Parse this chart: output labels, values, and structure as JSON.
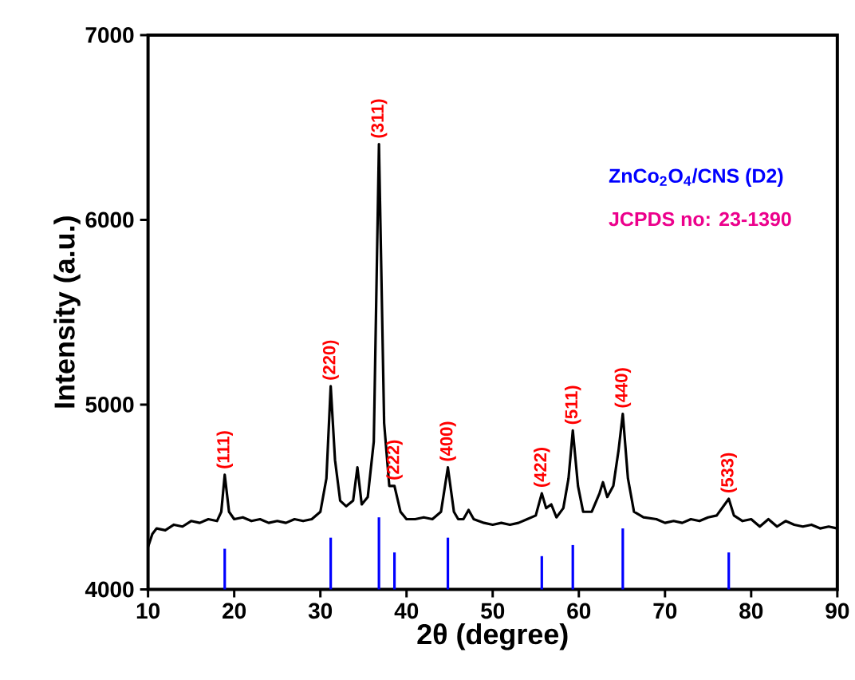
{
  "chart_data": {
    "type": "line",
    "xlabel": "2θ (degree)",
    "ylabel": "Intensity (a.u.)",
    "xlim": [
      10,
      90
    ],
    "xticks": [
      10,
      20,
      30,
      40,
      50,
      60,
      70,
      80,
      90
    ],
    "ylim": [
      4000,
      7000
    ],
    "yticks": [
      4000,
      5000,
      6000,
      7000
    ],
    "grid": false,
    "marker": "none",
    "line_style": "solid",
    "series": [
      {
        "color": "#000000",
        "x": [
          10,
          10.5,
          11,
          12,
          13,
          14,
          15,
          16,
          17,
          18,
          18.5,
          18.9,
          19.4,
          20,
          21,
          22,
          23,
          24,
          25,
          26,
          27,
          28,
          29,
          30,
          30.7,
          31.2,
          31.7,
          32.3,
          33,
          33.8,
          34.3,
          34.8,
          35.5,
          36.2,
          36.8,
          37.4,
          38,
          38.6,
          39.3,
          40,
          41,
          42,
          43,
          44,
          44.8,
          45.5,
          46,
          46.6,
          47.2,
          47.8,
          49,
          50,
          51,
          52,
          53,
          54,
          55,
          55.7,
          56.2,
          56.8,
          57.4,
          58.2,
          58.8,
          59.3,
          59.9,
          60.5,
          61.5,
          62.4,
          62.8,
          63.3,
          64,
          64.6,
          65.1,
          65.7,
          66.4,
          67.5,
          69,
          70,
          71,
          72,
          73,
          74,
          75,
          76,
          77.4,
          78,
          79,
          80,
          81,
          82,
          83,
          84,
          85,
          86,
          87,
          88,
          89,
          90
        ],
        "values": [
          4230,
          4300,
          4330,
          4320,
          4350,
          4340,
          4370,
          4360,
          4380,
          4370,
          4420,
          4620,
          4420,
          4380,
          4390,
          4370,
          4380,
          4360,
          4370,
          4360,
          4380,
          4370,
          4380,
          4420,
          4600,
          5100,
          4700,
          4480,
          4450,
          4480,
          4660,
          4460,
          4500,
          4800,
          6410,
          4900,
          4560,
          4560,
          4420,
          4380,
          4380,
          4390,
          4380,
          4420,
          4660,
          4420,
          4380,
          4380,
          4430,
          4380,
          4360,
          4350,
          4360,
          4350,
          4360,
          4380,
          4400,
          4520,
          4440,
          4460,
          4390,
          4440,
          4600,
          4860,
          4560,
          4420,
          4420,
          4520,
          4580,
          4500,
          4560,
          4750,
          4950,
          4600,
          4420,
          4390,
          4380,
          4360,
          4370,
          4360,
          4380,
          4370,
          4390,
          4400,
          4490,
          4400,
          4370,
          4380,
          4340,
          4380,
          4340,
          4370,
          4350,
          4340,
          4350,
          4330,
          4340,
          4330
        ]
      },
      {
        "type": "bar",
        "color": "#0000ff",
        "x": [
          18.9,
          31.2,
          36.8,
          38.6,
          44.8,
          55.7,
          59.3,
          65.1,
          77.4
        ],
        "values": [
          4220,
          4280,
          4390,
          4200,
          4280,
          4180,
          4240,
          4330,
          4200
        ]
      }
    ],
    "annotations": [
      {
        "text": "(111)",
        "x": 18.9,
        "y": 4620
      },
      {
        "text": "(220)",
        "x": 31.2,
        "y": 5100
      },
      {
        "text": "(311)",
        "x": 36.8,
        "y": 6410
      },
      {
        "text": "(222)",
        "x": 38.6,
        "y": 4560
      },
      {
        "text": "(400)",
        "x": 44.8,
        "y": 4660
      },
      {
        "text": "(422)",
        "x": 55.7,
        "y": 4520
      },
      {
        "text": "(511)",
        "x": 59.3,
        "y": 4860
      },
      {
        "text": "(440)",
        "x": 65.1,
        "y": 4950
      },
      {
        "text": "(533)",
        "x": 77.4,
        "y": 4490
      },
      "ZnCo$_{2}$O$_{4}$/CNS (D2)",
      "JCPDS no: 23-1390"
    ]
  }
}
